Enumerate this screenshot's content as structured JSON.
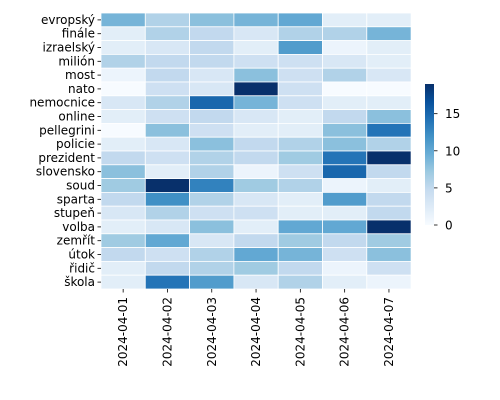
{
  "chart_data": {
    "type": "heatmap",
    "title": "",
    "xlabel": "",
    "ylabel": "",
    "x": [
      "2024-04-01",
      "2024-04-02",
      "2024-04-03",
      "2024-04-04",
      "2024-04-05",
      "2024-04-06",
      "2024-04-07"
    ],
    "y": [
      "evropský",
      "finále",
      "izraelský",
      "milión",
      "most",
      "nato",
      "nemocnice",
      "online",
      "pellegrini",
      "policie",
      "prezident",
      "slovensko",
      "soud",
      "sparta",
      "stupeň",
      "volba",
      "zemřít",
      "útok",
      "řidič",
      "škola"
    ],
    "values": [
      [
        9,
        6,
        8,
        9,
        10,
        2,
        2
      ],
      [
        2,
        6,
        5,
        3,
        6,
        6,
        9
      ],
      [
        2,
        3,
        5,
        2,
        11,
        1,
        2
      ],
      [
        6,
        5,
        5,
        4,
        4,
        3,
        2
      ],
      [
        1,
        5,
        3,
        8,
        4,
        6,
        3
      ],
      [
        0,
        4,
        3,
        19,
        4,
        0,
        0
      ],
      [
        3,
        6,
        15,
        9,
        4,
        2,
        2
      ],
      [
        2,
        4,
        5,
        3,
        2,
        5,
        8
      ],
      [
        0,
        8,
        4,
        2,
        2,
        8,
        14
      ],
      [
        2,
        3,
        8,
        5,
        6,
        8,
        6
      ],
      [
        5,
        4,
        6,
        5,
        7,
        14,
        19
      ],
      [
        8,
        2,
        6,
        1,
        4,
        15,
        5
      ],
      [
        7,
        19,
        13,
        7,
        6,
        1,
        2
      ],
      [
        5,
        12,
        6,
        3,
        2,
        11,
        5
      ],
      [
        3,
        6,
        4,
        4,
        2,
        2,
        5
      ],
      [
        2,
        3,
        8,
        2,
        10,
        10,
        19
      ],
      [
        7,
        10,
        3,
        5,
        7,
        5,
        7
      ],
      [
        5,
        4,
        6,
        10,
        9,
        4,
        8
      ],
      [
        2,
        5,
        6,
        7,
        5,
        1,
        4
      ],
      [
        2,
        14,
        11,
        3,
        6,
        2,
        1
      ]
    ],
    "colorbar": {
      "min": 0,
      "max": 19,
      "ticks": [
        0,
        5,
        10,
        15
      ]
    },
    "colormap": [
      "#f7fbff",
      "#deebf7",
      "#c6dbef",
      "#9ecae1",
      "#6baed6",
      "#4292c6",
      "#2171b5",
      "#08519c",
      "#08306b"
    ],
    "grid_color": "#ffffff"
  }
}
